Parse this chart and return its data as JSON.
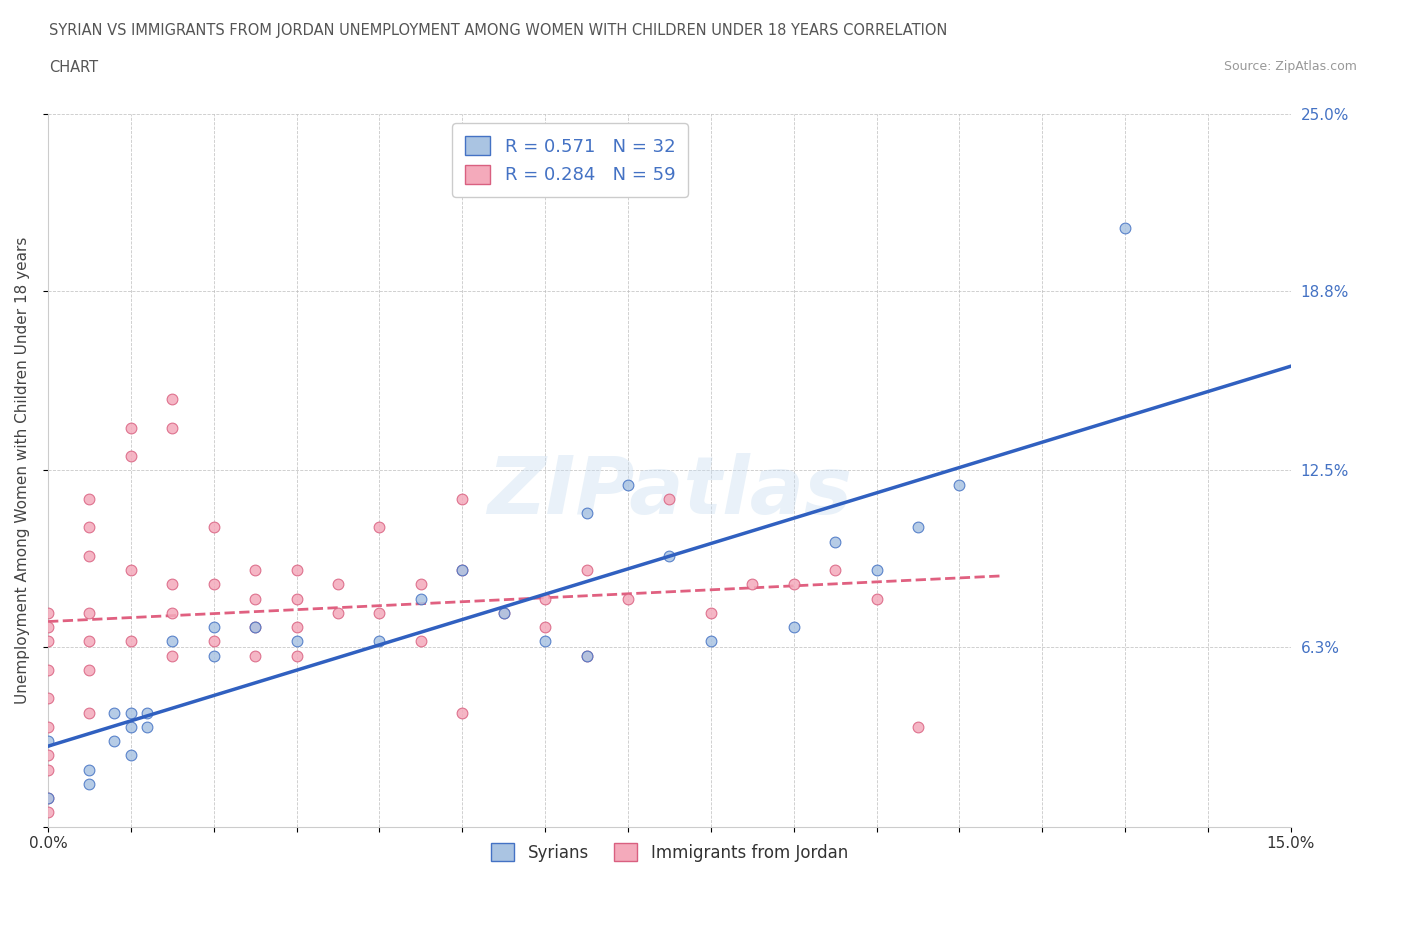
{
  "title_line1": "SYRIAN VS IMMIGRANTS FROM JORDAN UNEMPLOYMENT AMONG WOMEN WITH CHILDREN UNDER 18 YEARS CORRELATION",
  "title_line2": "CHART",
  "source": "Source: ZipAtlas.com",
  "ylabel": "Unemployment Among Women with Children Under 18 years",
  "xlim": [
    0.0,
    0.15
  ],
  "ylim": [
    0.0,
    0.25
  ],
  "ytick_positions": [
    0.0,
    0.063,
    0.125,
    0.188,
    0.25
  ],
  "ytick_labels": [
    "",
    "6.3%",
    "12.5%",
    "18.8%",
    "25.0%"
  ],
  "legend_syrians": "Syrians",
  "legend_jordan": "Immigrants from Jordan",
  "R_syrians": "0.571",
  "N_syrians": "32",
  "R_jordan": "0.284",
  "N_jordan": "59",
  "color_syrians_fill": "#aac4e2",
  "color_syrians_edge": "#4472c4",
  "color_jordan_fill": "#f4aabb",
  "color_jordan_edge": "#d96080",
  "color_line_syrians": "#3060c0",
  "color_line_jordan": "#e06080",
  "watermark": "ZIPatlas",
  "syrians_x": [
    0.0,
    0.0,
    0.005,
    0.005,
    0.008,
    0.008,
    0.01,
    0.01,
    0.01,
    0.012,
    0.012,
    0.015,
    0.02,
    0.02,
    0.025,
    0.03,
    0.04,
    0.045,
    0.05,
    0.055,
    0.06,
    0.065,
    0.065,
    0.07,
    0.075,
    0.08,
    0.09,
    0.095,
    0.1,
    0.105,
    0.11,
    0.13
  ],
  "syrians_y": [
    0.03,
    0.01,
    0.02,
    0.015,
    0.04,
    0.03,
    0.04,
    0.035,
    0.025,
    0.04,
    0.035,
    0.065,
    0.06,
    0.07,
    0.07,
    0.065,
    0.065,
    0.08,
    0.09,
    0.075,
    0.065,
    0.06,
    0.11,
    0.12,
    0.095,
    0.065,
    0.07,
    0.1,
    0.09,
    0.105,
    0.12,
    0.21
  ],
  "jordan_x": [
    0.0,
    0.0,
    0.0,
    0.0,
    0.0,
    0.0,
    0.0,
    0.0,
    0.0,
    0.0,
    0.005,
    0.005,
    0.005,
    0.005,
    0.005,
    0.005,
    0.005,
    0.01,
    0.01,
    0.01,
    0.01,
    0.015,
    0.015,
    0.015,
    0.015,
    0.015,
    0.02,
    0.02,
    0.02,
    0.025,
    0.025,
    0.025,
    0.025,
    0.03,
    0.03,
    0.03,
    0.03,
    0.035,
    0.035,
    0.04,
    0.04,
    0.045,
    0.045,
    0.05,
    0.05,
    0.05,
    0.055,
    0.06,
    0.06,
    0.065,
    0.065,
    0.07,
    0.075,
    0.08,
    0.085,
    0.09,
    0.095,
    0.1,
    0.105
  ],
  "jordan_y": [
    0.075,
    0.07,
    0.065,
    0.055,
    0.045,
    0.035,
    0.025,
    0.02,
    0.01,
    0.005,
    0.115,
    0.105,
    0.095,
    0.075,
    0.065,
    0.055,
    0.04,
    0.14,
    0.13,
    0.09,
    0.065,
    0.15,
    0.14,
    0.085,
    0.075,
    0.06,
    0.105,
    0.085,
    0.065,
    0.09,
    0.08,
    0.07,
    0.06,
    0.09,
    0.08,
    0.07,
    0.06,
    0.085,
    0.075,
    0.105,
    0.075,
    0.085,
    0.065,
    0.115,
    0.09,
    0.04,
    0.075,
    0.08,
    0.07,
    0.09,
    0.06,
    0.08,
    0.115,
    0.075,
    0.085,
    0.085,
    0.09,
    0.08,
    0.035
  ]
}
